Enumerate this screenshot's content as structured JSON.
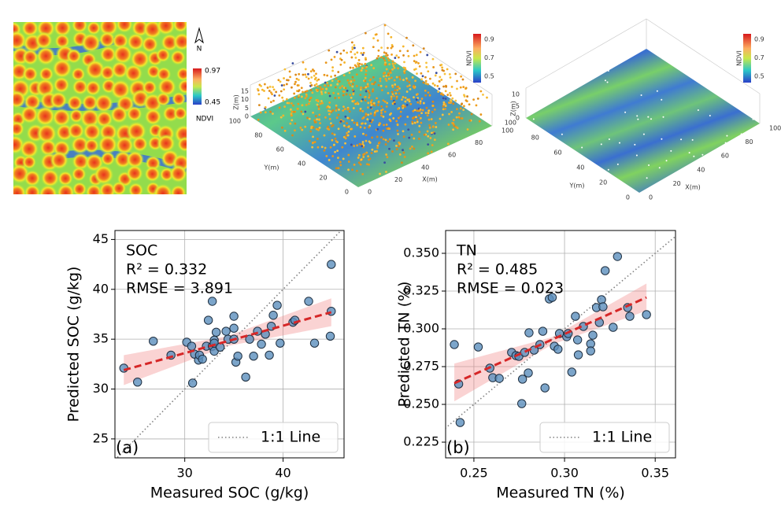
{
  "ndvi_map": {
    "north": "N",
    "colorbar": {
      "label": "NDVI",
      "ticks": [
        0.97,
        0.45
      ]
    }
  },
  "panels_3d": [
    {
      "z_label": "Z(m)",
      "z_ticks": [
        0,
        5,
        10,
        15
      ],
      "y_label": "Y(m)",
      "y_ticks": [
        0,
        20,
        40,
        60,
        80,
        100
      ],
      "x_label": "X(m)",
      "x_ticks": [
        0,
        20,
        40,
        60,
        80,
        100
      ],
      "colorbar": {
        "label": "NDVI",
        "ticks": [
          0.9,
          0.7,
          0.5
        ]
      }
    },
    {
      "z_label": "Z(m)",
      "z_ticks": [
        0,
        5,
        10
      ],
      "y_label": "Y(m)",
      "y_ticks": [
        0,
        20,
        40,
        60,
        80,
        100
      ],
      "x_label": "X(m)",
      "x_ticks": [
        0,
        20,
        40,
        60,
        80,
        100
      ],
      "colorbar": {
        "label": "NDVI",
        "ticks": [
          0.9,
          0.7,
          0.5
        ]
      }
    }
  ],
  "chart_data": [
    {
      "type": "scatter",
      "xlabel": "Measured SOC (g/kg)",
      "ylabel": "Predicted SOC (g/kg)",
      "annotations": [
        "SOC",
        "R² = 0.332",
        "RMSE = 3.891"
      ],
      "panel_label": "(a)",
      "xlim": [
        22.9,
        46.2
      ],
      "ylim": [
        23.1,
        45.9
      ],
      "xticks": [
        30,
        40
      ],
      "yticks": [
        25,
        30,
        35,
        40,
        45
      ],
      "grid": true,
      "color": "#5b8fbd",
      "x": [
        23.8,
        25.2,
        26.8,
        28.6,
        30.2,
        30.7,
        30.8,
        31.0,
        31.4,
        31.5,
        31.8,
        32.2,
        32.4,
        32.8,
        32.8,
        33.0,
        33.0,
        33.0,
        33.2,
        33.6,
        34.2,
        34.4,
        35.0,
        35.0,
        35.0,
        35.2,
        35.4,
        36.2,
        36.6,
        37.0,
        37.4,
        37.8,
        38.2,
        38.6,
        38.8,
        39.0,
        39.4,
        39.7,
        41.0,
        41.2,
        42.6,
        43.2,
        44.8,
        44.9,
        44.9
      ],
      "y": [
        32.1,
        30.7,
        34.8,
        33.4,
        34.7,
        34.3,
        30.6,
        33.5,
        32.9,
        33.4,
        33.0,
        34.3,
        36.9,
        38.8,
        34.3,
        34.9,
        33.8,
        34.6,
        35.7,
        34.2,
        35.8,
        35.0,
        37.3,
        36.1,
        35.0,
        32.7,
        33.3,
        31.2,
        35.0,
        33.3,
        35.8,
        34.5,
        35.5,
        33.4,
        36.3,
        37.4,
        38.4,
        34.6,
        36.7,
        36.9,
        38.8,
        34.6,
        35.3,
        37.8,
        42.5
      ],
      "fit": {
        "color": "#d62728",
        "x": [
          23.8,
          44.9
        ],
        "y": [
          31.9,
          37.7
        ]
      },
      "band": {
        "color": "#f08080",
        "x": [
          23.8,
          34.3,
          44.9
        ],
        "lower": [
          30.4,
          34.3,
          36.3
        ],
        "upper": [
          33.4,
          35.3,
          39.1
        ]
      },
      "reference_line": {
        "name": "1:1 Line",
        "color": "#808080"
      },
      "legend": "lower right"
    },
    {
      "type": "scatter",
      "xlabel": "Measured TN (%)",
      "ylabel": "Predicted TN (%)",
      "annotations": [
        "TN",
        "R² = 0.485",
        "RMSE = 0.023"
      ],
      "panel_label": "(b)",
      "xlim": [
        0.2344,
        0.3612
      ],
      "ylim": [
        0.2146,
        0.3651
      ],
      "xticks": [
        0.25,
        {
          "value": 0.3,
          "label": "0.30"
        },
        0.35
      ],
      "yticks": [
        0.225,
        {
          "value": 0.25,
          "label": "0.250"
        },
        0.275,
        {
          "value": 0.3,
          "label": "0.300"
        },
        0.325,
        {
          "value": 0.35,
          "label": "0.350"
        }
      ],
      "grid": true,
      "color": "#5b8fbd",
      "x": [
        0.2392,
        0.2416,
        0.2424,
        0.2524,
        0.2588,
        0.2604,
        0.264,
        0.2708,
        0.2732,
        0.2748,
        0.2764,
        0.2768,
        0.278,
        0.28,
        0.2804,
        0.2832,
        0.2864,
        0.288,
        0.2892,
        0.2916,
        0.2932,
        0.2944,
        0.2964,
        0.2972,
        0.3012,
        0.302,
        0.304,
        0.306,
        0.3072,
        0.3076,
        0.3104,
        0.3144,
        0.3144,
        0.3156,
        0.3176,
        0.3192,
        0.3204,
        0.3212,
        0.3224,
        0.3268,
        0.3292,
        0.3348,
        0.336,
        0.3452
      ],
      "y": [
        0.2896,
        0.2635,
        0.238,
        0.288,
        0.274,
        0.2677,
        0.2672,
        0.2844,
        0.2823,
        0.2818,
        0.2505,
        0.2667,
        0.2844,
        0.2708,
        0.2974,
        0.2859,
        0.2896,
        0.2984,
        0.2609,
        0.3198,
        0.3208,
        0.2885,
        0.2865,
        0.2969,
        0.2948,
        0.2969,
        0.2714,
        0.3083,
        0.2927,
        0.2828,
        0.3016,
        0.2901,
        0.2854,
        0.2958,
        0.3141,
        0.3042,
        0.3193,
        0.3146,
        0.3385,
        0.301,
        0.3479,
        0.3141,
        0.3083,
        0.3094
      ],
      "fit": {
        "color": "#d62728",
        "x": [
          0.2392,
          0.3452
        ],
        "y": [
          0.264,
          0.3208
        ]
      },
      "band": {
        "color": "#f08080",
        "x": [
          0.2392,
          0.293,
          0.3452
        ],
        "lower": [
          0.252,
          0.2895,
          0.312
        ],
        "upper": [
          0.277,
          0.2945,
          0.33
        ]
      },
      "reference_line": {
        "name": "1:1 Line",
        "color": "#808080"
      },
      "legend": "lower right"
    }
  ]
}
